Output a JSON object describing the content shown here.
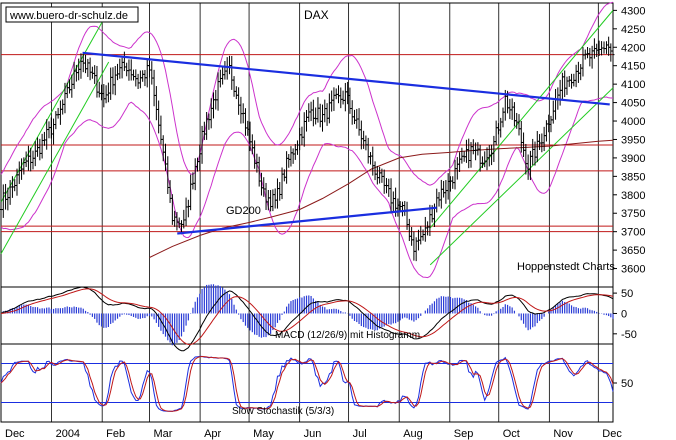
{
  "watermark": "www.buero-dr-schulz.de",
  "chart_data": [
    {
      "panel": "price",
      "type": "ohlc",
      "title": "DAX",
      "source_label": "Hoppenstedt Charts",
      "x_range": [
        "2003-12-01",
        "2004-12-10"
      ],
      "ylim": [
        3550,
        4320
      ],
      "yticks": [
        "4300",
        "4250",
        "4200",
        "4150",
        "4100",
        "4050",
        "4000",
        "3950",
        "3900",
        "3850",
        "3800",
        "3750",
        "3700",
        "3650",
        "3600"
      ],
      "x_months": [
        {
          "label": "Dec",
          "date": "2003-12-01"
        },
        {
          "label": "2004",
          "date": "2004-01-01"
        },
        {
          "label": "Feb",
          "date": "2004-02-01"
        },
        {
          "label": "Mar",
          "date": "2004-03-01"
        },
        {
          "label": "Apr",
          "date": "2004-04-01"
        },
        {
          "label": "May",
          "date": "2004-05-01"
        },
        {
          "label": "Jun",
          "date": "2004-06-01"
        },
        {
          "label": "Jul",
          "date": "2004-07-01"
        },
        {
          "label": "Aug",
          "date": "2004-08-01"
        },
        {
          "label": "Sep",
          "date": "2004-09-01"
        },
        {
          "label": "Oct",
          "date": "2004-10-01"
        },
        {
          "label": "Nov",
          "date": "2004-11-01"
        },
        {
          "label": "Dec",
          "date": "2004-12-01"
        }
      ],
      "close_series": [
        [
          "2003-12-01",
          3780
        ],
        [
          "2003-12-08",
          3820
        ],
        [
          "2003-12-15",
          3880
        ],
        [
          "2003-12-22",
          3910
        ],
        [
          "2004-01-05",
          4010
        ],
        [
          "2004-01-12",
          4090
        ],
        [
          "2004-01-19",
          4170
        ],
        [
          "2004-01-26",
          4120
        ],
        [
          "2004-02-02",
          4060
        ],
        [
          "2004-02-09",
          4130
        ],
        [
          "2004-02-16",
          4150
        ],
        [
          "2004-02-23",
          4110
        ],
        [
          "2004-03-01",
          4140
        ],
        [
          "2004-03-08",
          3950
        ],
        [
          "2004-03-15",
          3740
        ],
        [
          "2004-03-22",
          3720
        ],
        [
          "2004-03-29",
          3880
        ],
        [
          "2004-04-05",
          4000
        ],
        [
          "2004-04-12",
          4090
        ],
        [
          "2004-04-19",
          4140
        ],
        [
          "2004-04-26",
          4040
        ],
        [
          "2004-05-03",
          3920
        ],
        [
          "2004-05-10",
          3800
        ],
        [
          "2004-05-17",
          3780
        ],
        [
          "2004-05-24",
          3880
        ],
        [
          "2004-06-01",
          3960
        ],
        [
          "2004-06-08",
          4030
        ],
        [
          "2004-06-15",
          4010
        ],
        [
          "2004-06-22",
          4050
        ],
        [
          "2004-06-29",
          4070
        ],
        [
          "2004-07-06",
          3990
        ],
        [
          "2004-07-13",
          3910
        ],
        [
          "2004-07-20",
          3840
        ],
        [
          "2004-07-27",
          3790
        ],
        [
          "2004-08-03",
          3760
        ],
        [
          "2004-08-10",
          3660
        ],
        [
          "2004-08-17",
          3700
        ],
        [
          "2004-08-24",
          3790
        ],
        [
          "2004-08-31",
          3830
        ],
        [
          "2004-09-07",
          3880
        ],
        [
          "2004-09-14",
          3920
        ],
        [
          "2004-09-21",
          3900
        ],
        [
          "2004-09-28",
          3940
        ],
        [
          "2004-10-05",
          4060
        ],
        [
          "2004-10-12",
          3990
        ],
        [
          "2004-10-19",
          3880
        ],
        [
          "2004-10-26",
          3940
        ],
        [
          "2004-11-02",
          4020
        ],
        [
          "2004-11-09",
          4100
        ],
        [
          "2004-11-16",
          4130
        ],
        [
          "2004-11-23",
          4170
        ],
        [
          "2004-11-30",
          4180
        ],
        [
          "2004-12-06",
          4210
        ],
        [
          "2004-12-10",
          4180
        ]
      ],
      "support_resistance_levels": [
        4180,
        3935,
        3865,
        3715,
        3700
      ],
      "trendlines": [
        {
          "name": "resistance",
          "points": [
            [
              "2004-01-20",
              4185
            ],
            [
              "2004-12-08",
              4045
            ]
          ]
        },
        {
          "name": "support",
          "points": [
            [
              "2004-03-18",
              3695
            ],
            [
              "2004-08-24",
              3765
            ]
          ]
        },
        {
          "name": "channel-upper",
          "points": [
            [
              "2003-12-01",
              3780
            ],
            [
              "2004-02-05",
              4300
            ]
          ]
        },
        {
          "name": "channel-lower",
          "points": [
            [
              "2003-12-01",
              3640
            ],
            [
              "2004-02-05",
              4160
            ]
          ]
        },
        {
          "name": "channel2-upper",
          "points": [
            [
              "2004-08-20",
              3710
            ],
            [
              "2004-12-10",
              4300
            ]
          ]
        },
        {
          "name": "channel2-lower",
          "points": [
            [
              "2004-08-20",
              3610
            ],
            [
              "2004-12-10",
              4090
            ]
          ]
        }
      ],
      "moving_average": {
        "label": "GD200",
        "points": [
          [
            "2004-03-01",
            3630
          ],
          [
            "2004-03-15",
            3660
          ],
          [
            "2004-04-01",
            3690
          ],
          [
            "2004-04-15",
            3710
          ],
          [
            "2004-05-01",
            3725
          ],
          [
            "2004-05-15",
            3740
          ],
          [
            "2004-06-01",
            3760
          ],
          [
            "2004-06-15",
            3790
          ],
          [
            "2004-07-01",
            3830
          ],
          [
            "2004-07-15",
            3870
          ],
          [
            "2004-08-01",
            3900
          ],
          [
            "2004-08-15",
            3910
          ],
          [
            "2004-09-01",
            3915
          ],
          [
            "2004-09-15",
            3920
          ],
          [
            "2004-10-01",
            3925
          ],
          [
            "2004-10-15",
            3928
          ],
          [
            "2004-11-01",
            3932
          ],
          [
            "2004-11-15",
            3938
          ],
          [
            "2004-12-01",
            3945
          ],
          [
            "2004-12-10",
            3948
          ]
        ]
      },
      "bollinger_width": 130
    },
    {
      "panel": "macd",
      "type": "line+histogram",
      "label": "MACD (12/26/9) mit Histogramm",
      "ylim": [
        -75,
        65
      ],
      "yticks": [
        "50",
        "0",
        "-50"
      ]
    },
    {
      "panel": "stochastic",
      "type": "line",
      "label": "Slow Stochastik (5/3/3)",
      "ylim": [
        -10,
        110
      ],
      "yticks": [
        "50"
      ],
      "levels": [
        80,
        20
      ]
    }
  ]
}
